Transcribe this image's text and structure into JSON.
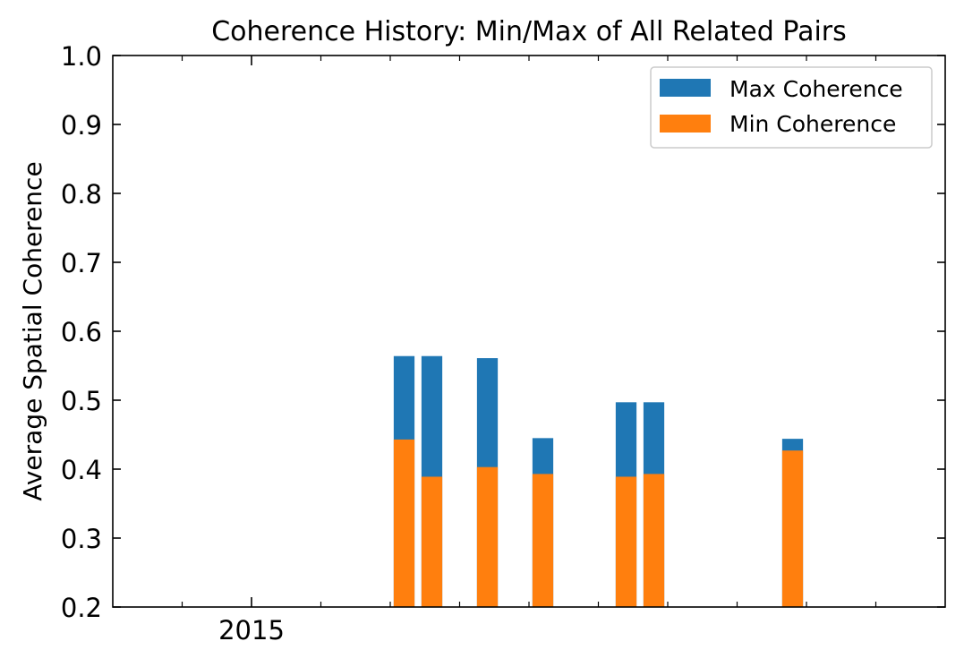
{
  "chart_data": {
    "type": "bar",
    "title": "Coherence History: Min/Max of All Related Pairs",
    "xlabel": "",
    "ylabel": "Average Spatial Coherence",
    "ylim": [
      0.2,
      1.0
    ],
    "yticks": [
      "0.2",
      "0.3",
      "0.4",
      "0.5",
      "0.6",
      "0.7",
      "0.8",
      "0.9",
      "1.0"
    ],
    "xtick_labels": [
      {
        "label": "2015",
        "x": 2015.0
      }
    ],
    "xlim": [
      2014.0,
      2020.0
    ],
    "minor_xticks": [
      2014.5,
      2015.5,
      2016.0,
      2016.5,
      2017.0,
      2017.5,
      2018.0,
      2018.5,
      2019.0,
      2019.5
    ],
    "bar_width": 0.15,
    "x": [
      2016.1,
      2016.3,
      2016.7,
      2017.1,
      2017.7,
      2017.9,
      2018.9
    ],
    "series": [
      {
        "name": "Max Coherence",
        "color": "#1f77b4",
        "values": [
          0.564,
          0.564,
          0.561,
          0.445,
          0.497,
          0.497,
          0.444
        ]
      },
      {
        "name": "Min Coherence",
        "color": "#ff7f0e",
        "values": [
          0.443,
          0.389,
          0.403,
          0.393,
          0.389,
          0.393,
          0.427
        ]
      }
    ],
    "legend_position": "top-right",
    "grid": false
  }
}
